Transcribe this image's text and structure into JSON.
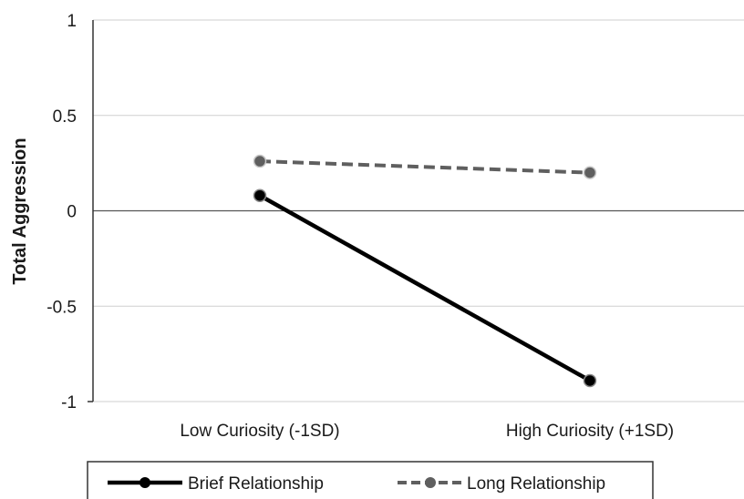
{
  "chart_data": {
    "type": "line",
    "title": "",
    "xlabel": "",
    "ylabel": "Total Aggression",
    "categories": [
      "Low Curiosity (-1SD)",
      "High Curiosity (+1SD)"
    ],
    "ylim": [
      -1,
      1
    ],
    "yticks": [
      1,
      0.5,
      0,
      -0.5,
      -1
    ],
    "ytick_labels": [
      "1",
      "0.5",
      "0",
      "-0.5",
      "-1"
    ],
    "grid": true,
    "legend_position": "bottom",
    "series": [
      {
        "name": "Brief Relationship",
        "values": [
          0.08,
          -0.89
        ],
        "color": "#000000",
        "dash": "solid"
      },
      {
        "name": "Long Relationship",
        "values": [
          0.26,
          0.2
        ],
        "color": "#5f5f5f",
        "dash": "dashed"
      }
    ]
  }
}
